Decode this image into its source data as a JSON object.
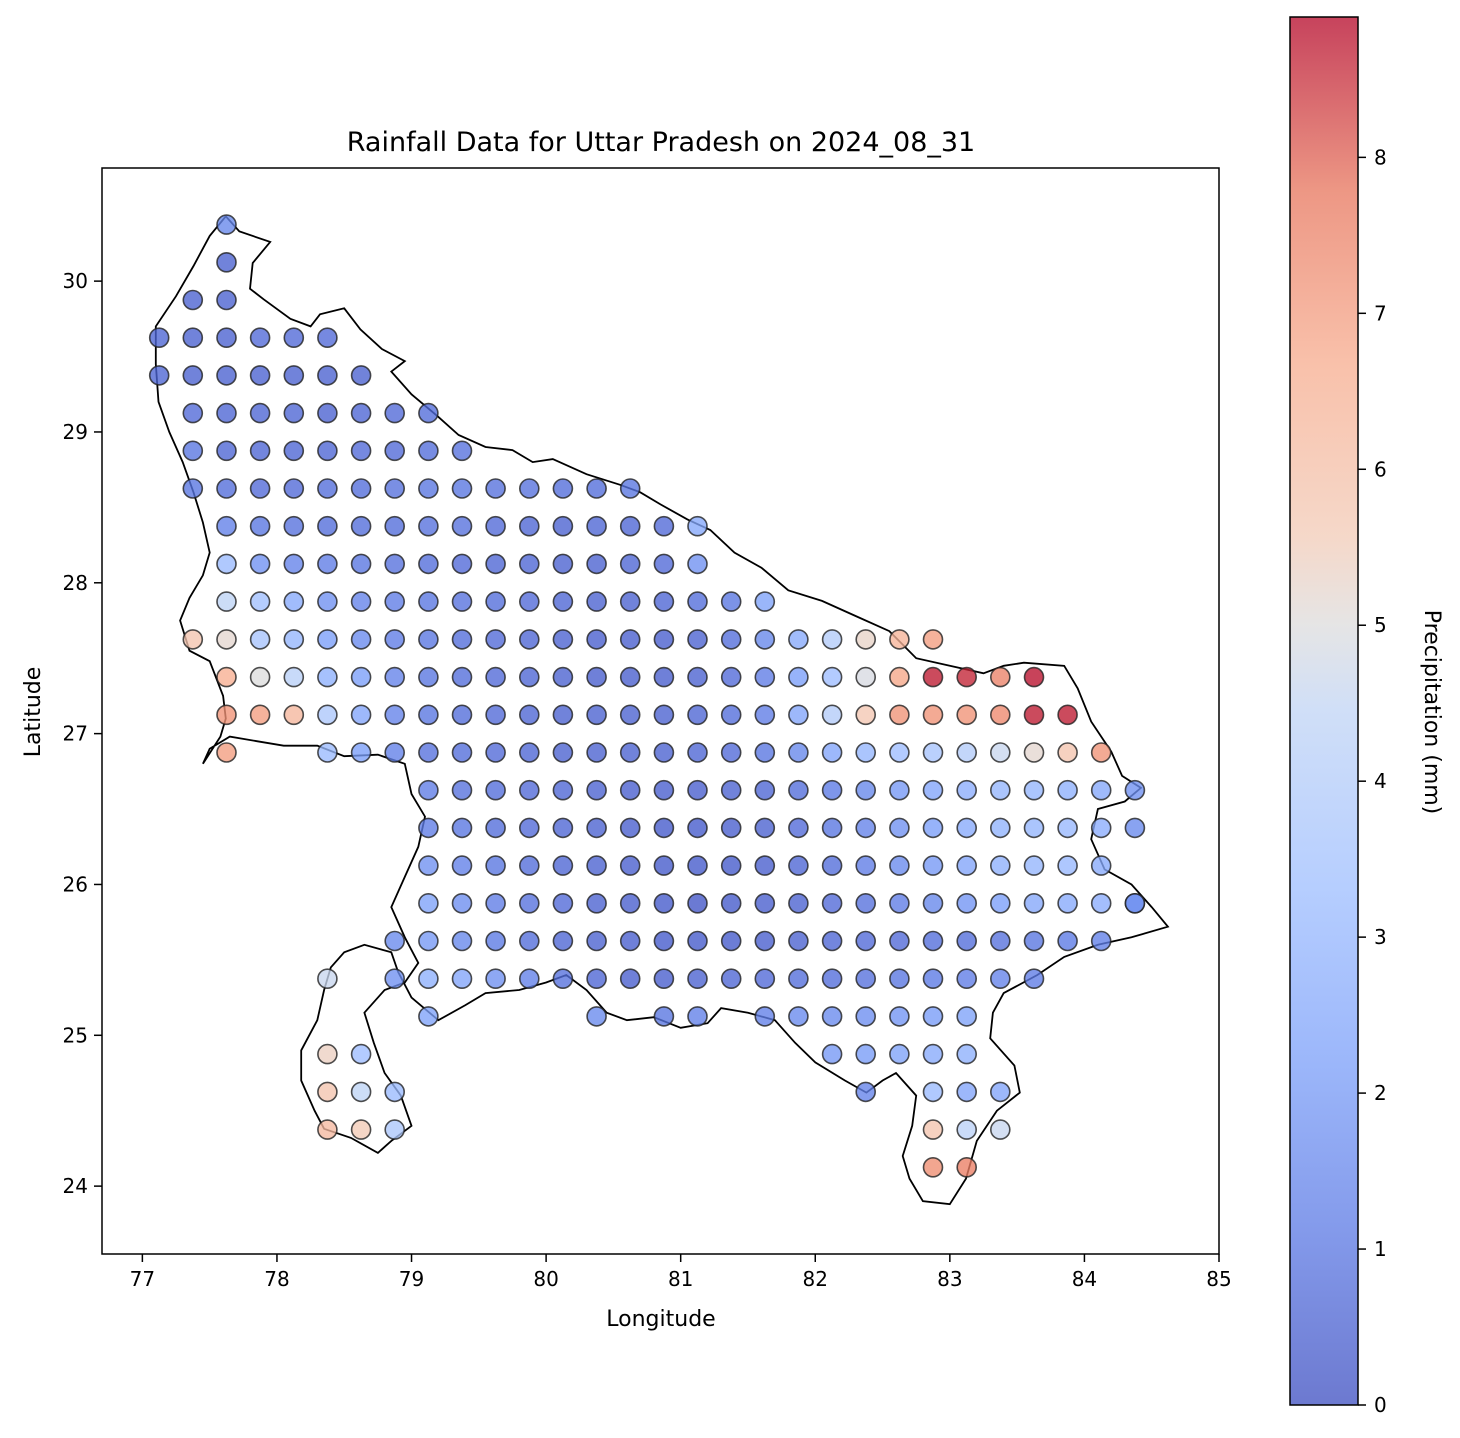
{
  "chart_data": {
    "type": "scatter",
    "title": "Rainfall Data for Uttar Pradesh on 2024_08_31",
    "xlabel": "Longitude",
    "ylabel": "Latitude",
    "xlim": [
      76.7,
      85.0
    ],
    "ylim": [
      23.55,
      30.75
    ],
    "xticks": [
      "77",
      "78",
      "79",
      "80",
      "81",
      "82",
      "83",
      "84",
      "85"
    ],
    "yticks": [
      "24",
      "25",
      "26",
      "27",
      "28",
      "29",
      "30"
    ],
    "grid": false,
    "colormap": "coolwarm",
    "colorbar": {
      "label": "Precipitation (mm)",
      "range": [
        0,
        8.9
      ],
      "ticks": [
        "0",
        "1",
        "2",
        "3",
        "4",
        "5",
        "6",
        "7",
        "8"
      ],
      "placement": "right"
    },
    "grid_origin": {
      "lon": 77.125,
      "lat": 24.125,
      "step": 0.25
    },
    "values_by_row": [
      {
        "lat": 30.375,
        "start_lon": 77.625,
        "values": [
          1.5
        ]
      },
      {
        "lat": 30.125,
        "start_lon": 77.625,
        "values": [
          0.5
        ]
      },
      {
        "lat": 29.875,
        "start_lon": 77.375,
        "values": [
          0.5,
          0.5
        ]
      },
      {
        "lat": 29.625,
        "start_lon": 77.125,
        "values": [
          0.6,
          0.5,
          0.5,
          0.7,
          0.7,
          0.7
        ]
      },
      {
        "lat": 29.375,
        "start_lon": 77.125,
        "values": [
          0.6,
          0.5,
          0.5,
          0.5,
          0.5,
          0.5,
          0.5
        ]
      },
      {
        "lat": 29.125,
        "start_lon": 77.375,
        "values": [
          0.7,
          0.6,
          0.6,
          0.6,
          0.5,
          0.6,
          0.7,
          0.8
        ]
      },
      {
        "lat": 28.875,
        "start_lon": 77.375,
        "values": [
          1.0,
          0.6,
          0.6,
          0.6,
          0.6,
          0.7,
          0.7,
          0.8,
          0.9
        ]
      },
      {
        "lat": 28.625,
        "start_lon": 77.375,
        "values": [
          1.0,
          0.8,
          0.7,
          0.7,
          0.8,
          0.8,
          0.9,
          1.0,
          1.0,
          0.9,
          0.9,
          0.8,
          0.8,
          1.0
        ]
      },
      {
        "lat": 28.375,
        "start_lon": 77.625,
        "values": [
          1.3,
          1.0,
          0.9,
          0.8,
          0.8,
          0.8,
          0.9,
          0.9,
          0.7,
          0.6,
          0.5,
          0.6,
          0.6,
          0.7,
          2.5
        ]
      },
      {
        "lat": 28.125,
        "start_lon": 77.625,
        "values": [
          3.2,
          1.8,
          1.4,
          1.2,
          1.0,
          0.9,
          0.8,
          0.7,
          0.6,
          0.6,
          0.5,
          0.5,
          0.6,
          0.7,
          1.8
        ]
      },
      {
        "lat": 27.875,
        "start_lon": 77.625,
        "values": [
          4.4,
          3.4,
          2.6,
          1.8,
          1.4,
          1.2,
          1.0,
          0.9,
          0.8,
          0.7,
          0.6,
          0.5,
          0.5,
          0.6,
          0.8,
          1.0,
          2.3
        ]
      },
      {
        "lat": 27.625,
        "start_lon": 77.375,
        "values": [
          5.8,
          5.2,
          3.6,
          3.0,
          2.2,
          1.6,
          1.2,
          1.0,
          0.8,
          0.7,
          0.6,
          0.5,
          0.4,
          0.4,
          0.4,
          0.5,
          0.8,
          1.5,
          2.6,
          4.0,
          5.3,
          6.4,
          7.0
        ]
      },
      {
        "lat": 27.375,
        "start_lon": 77.625,
        "values": [
          6.6,
          5.0,
          4.2,
          2.8,
          2.2,
          1.4,
          1.0,
          0.8,
          0.7,
          0.6,
          0.5,
          0.4,
          0.4,
          0.4,
          0.5,
          0.7,
          1.2,
          2.2,
          3.3,
          4.9,
          6.8,
          8.7,
          8.6,
          7.5,
          8.8
        ]
      },
      {
        "lat": 27.125,
        "start_lon": 77.625,
        "values": [
          7.2,
          7.0,
          6.3,
          3.8,
          2.4,
          1.4,
          1.0,
          0.8,
          0.7,
          0.6,
          0.5,
          0.5,
          0.5,
          0.5,
          0.6,
          0.8,
          1.2,
          2.4,
          4.0,
          5.7,
          7.2,
          7.2,
          7.2,
          7.4,
          8.7,
          8.7
        ]
      },
      {
        "lat": 26.875,
        "start_lon": 77.625,
        "values": [
          7.0
        ]
      },
      {
        "lat": 26.875,
        "start_lon": 78.375,
        "values": [
          3.2,
          2.2,
          1.3,
          0.9,
          0.8,
          0.7,
          0.6,
          0.5,
          0.5,
          0.5,
          0.5,
          0.6,
          0.7,
          1.0,
          1.5,
          2.4,
          3.0,
          3.3,
          3.6,
          4.0,
          4.6,
          5.2,
          5.8,
          7.2
        ]
      },
      {
        "lat": 26.625,
        "start_lon": 79.125,
        "values": [
          1.2,
          0.9,
          0.8,
          0.7,
          0.6,
          0.5,
          0.4,
          0.4,
          0.4,
          0.5,
          0.6,
          0.8,
          1.1,
          1.5,
          2.0,
          2.4,
          2.7,
          3.0,
          3.0,
          2.8,
          2.5,
          1.8
        ]
      },
      {
        "lat": 26.375,
        "start_lon": 79.125,
        "values": [
          1.2,
          1.0,
          0.8,
          0.7,
          0.6,
          0.5,
          0.4,
          0.3,
          0.3,
          0.4,
          0.5,
          0.7,
          1.0,
          1.4,
          1.8,
          2.2,
          2.6,
          2.9,
          3.0,
          3.1,
          2.7,
          1.6
        ]
      },
      {
        "lat": 26.125,
        "start_lon": 79.125,
        "values": [
          1.8,
          1.3,
          1.0,
          0.8,
          0.6,
          0.5,
          0.4,
          0.3,
          0.3,
          0.3,
          0.4,
          0.6,
          0.8,
          1.2,
          1.6,
          2.0,
          2.4,
          2.8,
          3.0,
          3.1,
          2.6
        ]
      },
      {
        "lat": 25.875,
        "start_lon": 79.125,
        "values": [
          2.3,
          1.7,
          1.2,
          0.9,
          0.7,
          0.5,
          0.4,
          0.3,
          0.2,
          0.3,
          0.4,
          0.5,
          0.7,
          0.9,
          1.2,
          1.5,
          1.9,
          2.2,
          2.5,
          2.6,
          2.7,
          2.8
        ]
      },
      {
        "lat": 25.875,
        "start_lon": 84.375,
        "values": [
          1.6
        ]
      },
      {
        "lat": 25.625,
        "start_lon": 78.875,
        "values": [
          1.6,
          2.0,
          1.5,
          1.1,
          0.8,
          0.6,
          0.5,
          0.4,
          0.3,
          0.3,
          0.3,
          0.4,
          0.5,
          0.6,
          0.7,
          0.7,
          0.8,
          0.8,
          0.9,
          1.0,
          1.1,
          1.3
        ]
      },
      {
        "lat": 25.375,
        "start_lon": 78.375,
        "values": [
          4.6
        ]
      },
      {
        "lat": 25.375,
        "start_lon": 78.875,
        "values": [
          1.8,
          2.8,
          2.4,
          1.8,
          1.3,
          0.9,
          0.6,
          0.4,
          0.4,
          0.5,
          0.6,
          0.7,
          0.8,
          0.8,
          0.9,
          1.0,
          1.1,
          1.2,
          1.4,
          1.2
        ]
      },
      {
        "lat": 25.125,
        "start_lon": 79.125,
        "values": [
          2.3
        ]
      },
      {
        "lat": 25.125,
        "start_lon": 80.375,
        "values": [
          1.6
        ]
      },
      {
        "lat": 25.125,
        "start_lon": 80.875,
        "values": [
          1.0,
          1.3
        ]
      },
      {
        "lat": 25.125,
        "start_lon": 81.625,
        "values": [
          1.3,
          1.6,
          1.6,
          1.7,
          1.9,
          2.1,
          2.3
        ]
      },
      {
        "lat": 24.875,
        "start_lon": 78.375,
        "values": [
          5.4,
          3.3
        ]
      },
      {
        "lat": 24.875,
        "start_lon": 82.125,
        "values": [
          2.0,
          2.1,
          2.3,
          2.6,
          2.8
        ]
      },
      {
        "lat": 24.625,
        "start_lon": 78.375,
        "values": [
          5.8,
          4.4,
          3.2
        ]
      },
      {
        "lat": 24.625,
        "start_lon": 82.375,
        "values": [
          1.4
        ]
      },
      {
        "lat": 24.625,
        "start_lon": 82.875,
        "values": [
          3.2,
          2.4,
          2.4
        ]
      },
      {
        "lat": 24.375,
        "start_lon": 78.375,
        "values": [
          6.2,
          5.6,
          3.8
        ]
      },
      {
        "lat": 24.375,
        "start_lon": 82.875,
        "values": [
          5.8,
          4.3,
          4.6
        ]
      },
      {
        "lat": 24.125,
        "start_lon": 82.875,
        "values": [
          7.3,
          7.6
        ]
      }
    ],
    "boundary_outline": [
      [
        77.62,
        30.43
      ],
      [
        77.72,
        30.33
      ],
      [
        77.95,
        30.26
      ],
      [
        77.82,
        30.12
      ],
      [
        77.8,
        29.95
      ],
      [
        77.9,
        29.88
      ],
      [
        78.1,
        29.75
      ],
      [
        78.25,
        29.7
      ],
      [
        78.32,
        29.78
      ],
      [
        78.5,
        29.82
      ],
      [
        78.62,
        29.68
      ],
      [
        78.78,
        29.55
      ],
      [
        78.95,
        29.47
      ],
      [
        78.85,
        29.4
      ],
      [
        79.0,
        29.25
      ],
      [
        79.2,
        29.1
      ],
      [
        79.35,
        28.98
      ],
      [
        79.55,
        28.9
      ],
      [
        79.75,
        28.88
      ],
      [
        79.9,
        28.8
      ],
      [
        80.05,
        28.82
      ],
      [
        80.3,
        28.72
      ],
      [
        80.55,
        28.65
      ],
      [
        80.7,
        28.6
      ],
      [
        80.85,
        28.52
      ],
      [
        81.05,
        28.42
      ],
      [
        81.22,
        28.35
      ],
      [
        81.4,
        28.2
      ],
      [
        81.6,
        28.1
      ],
      [
        81.8,
        27.95
      ],
      [
        82.05,
        27.88
      ],
      [
        82.3,
        27.78
      ],
      [
        82.55,
        27.68
      ],
      [
        82.75,
        27.5
      ],
      [
        83.0,
        27.45
      ],
      [
        83.25,
        27.4
      ],
      [
        83.4,
        27.45
      ],
      [
        83.55,
        27.47
      ],
      [
        83.85,
        27.45
      ],
      [
        83.95,
        27.3
      ],
      [
        84.05,
        27.08
      ],
      [
        84.2,
        26.88
      ],
      [
        84.28,
        26.72
      ],
      [
        84.42,
        26.64
      ],
      [
        84.3,
        26.55
      ],
      [
        84.1,
        26.5
      ],
      [
        84.05,
        26.3
      ],
      [
        84.15,
        26.1
      ],
      [
        84.35,
        26.0
      ],
      [
        84.5,
        25.85
      ],
      [
        84.62,
        25.72
      ],
      [
        84.35,
        25.65
      ],
      [
        84.1,
        25.6
      ],
      [
        83.85,
        25.52
      ],
      [
        83.65,
        25.4
      ],
      [
        83.4,
        25.28
      ],
      [
        83.32,
        25.15
      ],
      [
        83.3,
        24.98
      ],
      [
        83.48,
        24.8
      ],
      [
        83.52,
        24.62
      ],
      [
        83.35,
        24.5
      ],
      [
        83.2,
        24.3
      ],
      [
        83.12,
        24.05
      ],
      [
        83.0,
        23.88
      ],
      [
        82.8,
        23.9
      ],
      [
        82.7,
        24.05
      ],
      [
        82.65,
        24.2
      ],
      [
        82.72,
        24.4
      ],
      [
        82.75,
        24.6
      ],
      [
        82.6,
        24.75
      ],
      [
        82.5,
        24.7
      ],
      [
        82.38,
        24.62
      ],
      [
        82.22,
        24.7
      ],
      [
        82.0,
        24.82
      ],
      [
        81.85,
        24.95
      ],
      [
        81.7,
        25.1
      ],
      [
        81.5,
        25.15
      ],
      [
        81.3,
        25.18
      ],
      [
        81.2,
        25.08
      ],
      [
        81.0,
        25.05
      ],
      [
        80.8,
        25.12
      ],
      [
        80.6,
        25.1
      ],
      [
        80.45,
        25.15
      ],
      [
        80.3,
        25.3
      ],
      [
        80.15,
        25.4
      ],
      [
        80.0,
        25.35
      ],
      [
        79.8,
        25.3
      ],
      [
        79.55,
        25.28
      ],
      [
        79.4,
        25.2
      ],
      [
        79.2,
        25.1
      ],
      [
        79.0,
        25.25
      ],
      [
        78.9,
        25.42
      ],
      [
        78.85,
        25.55
      ],
      [
        78.65,
        25.6
      ],
      [
        78.5,
        25.55
      ],
      [
        78.4,
        25.45
      ],
      [
        78.35,
        25.3
      ],
      [
        78.3,
        25.1
      ],
      [
        78.18,
        24.9
      ],
      [
        78.18,
        24.7
      ],
      [
        78.28,
        24.5
      ],
      [
        78.35,
        24.38
      ],
      [
        78.55,
        24.32
      ],
      [
        78.75,
        24.22
      ],
      [
        78.85,
        24.3
      ],
      [
        79.0,
        24.4
      ],
      [
        78.92,
        24.6
      ],
      [
        78.8,
        24.75
      ],
      [
        78.72,
        24.95
      ],
      [
        78.65,
        25.15
      ],
      [
        78.8,
        25.3
      ],
      [
        78.95,
        25.35
      ],
      [
        79.05,
        25.48
      ],
      [
        78.95,
        25.65
      ],
      [
        78.85,
        25.85
      ],
      [
        78.95,
        26.05
      ],
      [
        79.05,
        26.25
      ],
      [
        79.1,
        26.45
      ],
      [
        79.0,
        26.6
      ],
      [
        78.95,
        26.8
      ],
      [
        78.75,
        26.86
      ],
      [
        78.5,
        26.85
      ],
      [
        78.3,
        26.92
      ],
      [
        78.05,
        26.92
      ],
      [
        77.85,
        26.95
      ],
      [
        77.65,
        26.98
      ],
      [
        77.5,
        26.9
      ],
      [
        77.45,
        26.8
      ],
      [
        77.58,
        26.98
      ],
      [
        77.62,
        27.1
      ],
      [
        77.6,
        27.25
      ],
      [
        77.5,
        27.48
      ],
      [
        77.35,
        27.55
      ],
      [
        77.28,
        27.75
      ],
      [
        77.35,
        27.9
      ],
      [
        77.45,
        28.05
      ],
      [
        77.5,
        28.2
      ],
      [
        77.45,
        28.4
      ],
      [
        77.38,
        28.6
      ],
      [
        77.3,
        28.8
      ],
      [
        77.2,
        29.0
      ],
      [
        77.12,
        29.2
      ],
      [
        77.1,
        29.45
      ],
      [
        77.1,
        29.7
      ],
      [
        77.25,
        29.9
      ],
      [
        77.38,
        30.1
      ],
      [
        77.5,
        30.3
      ],
      [
        77.62,
        30.43
      ]
    ]
  }
}
